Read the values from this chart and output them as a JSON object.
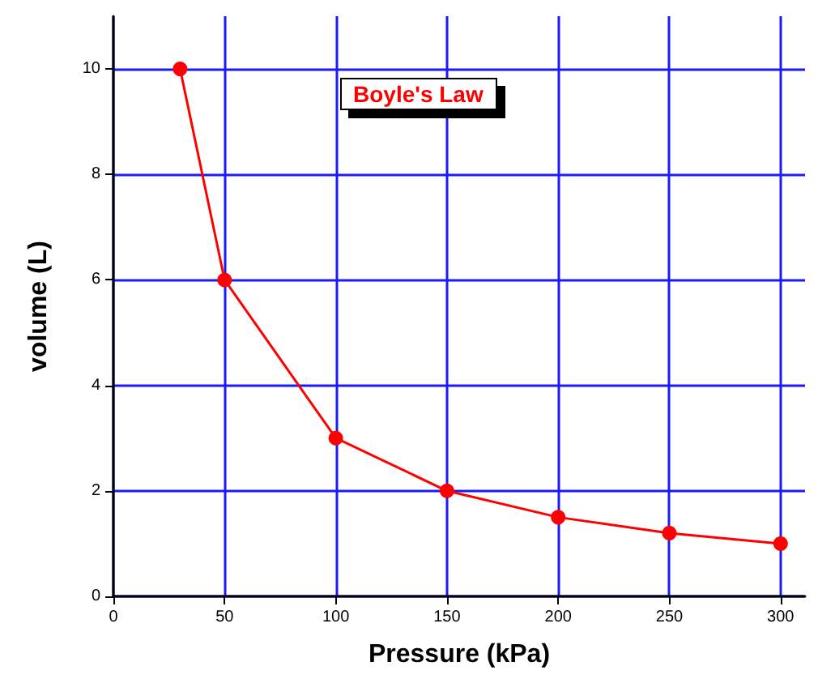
{
  "chart_data": {
    "type": "line",
    "title": "Boyle's Law",
    "xlabel": "Pressure (kPa)",
    "ylabel": "volume (L)",
    "x": [
      30,
      50,
      100,
      150,
      200,
      250,
      300
    ],
    "series": [
      {
        "color": "#ff0000",
        "values": [
          10,
          6,
          3,
          2,
          1.5,
          1.2,
          1
        ]
      }
    ],
    "xlim": [
      0,
      311
    ],
    "xticks": [
      0,
      50,
      100,
      150,
      200,
      250,
      300
    ],
    "ylim": [
      0,
      11
    ],
    "yticks": [
      0,
      2,
      4,
      6,
      8,
      10
    ],
    "grid": true,
    "marker": "circle",
    "line_style": "solid"
  }
}
